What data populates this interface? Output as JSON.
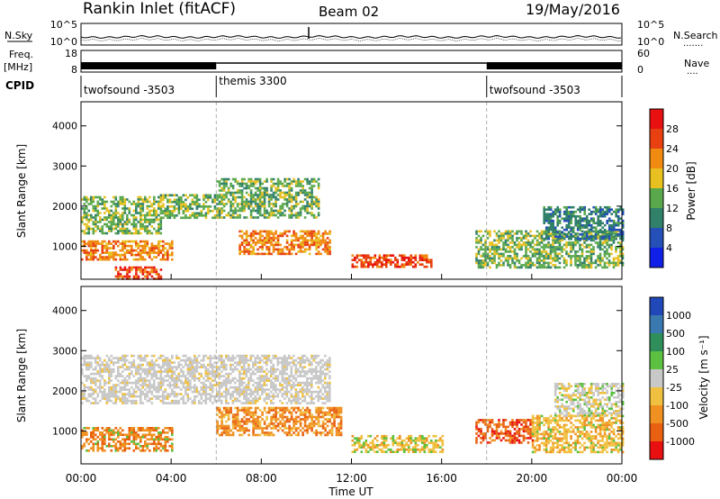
{
  "header": {
    "station": "Rankin Inlet (fitACF)",
    "beam": "Beam 02",
    "date": "19/May/2016"
  },
  "top_panels": {
    "noise": {
      "left_label": "N.Sky",
      "right_label": "N.Search",
      "left_ticks": [
        "10^5",
        "10^0"
      ],
      "right_ticks": [
        "10^5",
        "10^0"
      ],
      "right_legend": "......."
    },
    "freq": {
      "left_label_line1": "Freq.",
      "left_label_line2": "[MHz]",
      "right_label": "Nave",
      "left_ticks": [
        "18",
        "8"
      ],
      "right_ticks": [
        "60",
        "0"
      ],
      "right_legend": "...."
    },
    "cpid": {
      "label": "CPID",
      "segments": [
        {
          "name": "twofsound -3503",
          "start_h": 0,
          "end_h": 6
        },
        {
          "name": "themis 3300",
          "start_h": 6,
          "end_h": 18
        },
        {
          "name": "twofsound -3503",
          "start_h": 18,
          "end_h": 24
        }
      ]
    }
  },
  "power_colorbar": {
    "title": "Power [dB]",
    "ticks": [
      "4",
      "8",
      "12",
      "16",
      "20",
      "24",
      "28"
    ],
    "colors": [
      "#1020e6",
      "#2450b8",
      "#30806a",
      "#5aa84c",
      "#e8c020",
      "#f08a10",
      "#e84010",
      "#e81010"
    ]
  },
  "velocity_colorbar": {
    "title": "Velocity [m s⁻¹]",
    "ticks": [
      "1000",
      "500",
      "100",
      "25",
      "-25",
      "-100",
      "-500",
      "-1000"
    ],
    "colors": [
      "#2048b8",
      "#3a78b0",
      "#2f8f5a",
      "#5cc040",
      "#c8c8c8",
      "#f0c040",
      "#f09020",
      "#e86010",
      "#e81010"
    ]
  },
  "range_axis": {
    "label": "Slant Range [km]",
    "ticks": [
      "1000",
      "2000",
      "3000",
      "4000"
    ]
  },
  "time_axis": {
    "label": "Time UT",
    "ticks": [
      "00:00",
      "04:00",
      "08:00",
      "12:00",
      "16:00",
      "20:00",
      "00:00"
    ]
  },
  "chart_data": [
    {
      "type": "heatmap",
      "title": "Power [dB]",
      "xlabel": "Time UT",
      "ylabel": "Slant Range [km]",
      "xlim": [
        0,
        24
      ],
      "ylim": [
        180,
        4600
      ],
      "zlim": [
        0,
        30
      ],
      "mode_change_times": [
        6,
        18
      ],
      "echo_regions": [
        {
          "t0": 0.0,
          "t1": 3.5,
          "r0": 1350,
          "r1": 2250,
          "level": "12-16"
        },
        {
          "t0": 3.5,
          "t1": 6.0,
          "r0": 1700,
          "r1": 2300,
          "level": "12-16"
        },
        {
          "t0": 6.0,
          "t1": 10.5,
          "r0": 1700,
          "r1": 2700,
          "level": "12-16"
        },
        {
          "t0": 0.0,
          "t1": 4.0,
          "r0": 650,
          "r1": 1150,
          "level": "16-24"
        },
        {
          "t0": 1.5,
          "t1": 3.5,
          "r0": 200,
          "r1": 500,
          "level": "24-30"
        },
        {
          "t0": 7.0,
          "t1": 11.0,
          "r0": 800,
          "r1": 1400,
          "level": "16-24"
        },
        {
          "t0": 12.0,
          "t1": 15.5,
          "r0": 500,
          "r1": 800,
          "level": "20-28"
        },
        {
          "t0": 17.5,
          "t1": 24.0,
          "r0": 500,
          "r1": 1400,
          "level": "12-16"
        },
        {
          "t0": 20.5,
          "t1": 24.0,
          "r0": 1200,
          "r1": 2000,
          "level": "8-12"
        }
      ]
    },
    {
      "type": "heatmap",
      "title": "Velocity [m s⁻¹]",
      "xlabel": "Time UT",
      "ylabel": "Slant Range [km]",
      "xlim": [
        0,
        24
      ],
      "ylim": [
        180,
        4600
      ],
      "zlim": [
        -1000,
        1000
      ],
      "mode_change_times": [
        6,
        18
      ],
      "echo_regions": [
        {
          "t0": 0.0,
          "t1": 11.0,
          "r0": 1700,
          "r1": 2900,
          "level": "-25..25"
        },
        {
          "t0": 0.0,
          "t1": 4.0,
          "r0": 500,
          "r1": 1100,
          "level": "-100..-500"
        },
        {
          "t0": 6.0,
          "t1": 11.5,
          "r0": 900,
          "r1": 1600,
          "level": "-100..-500"
        },
        {
          "t0": 12.0,
          "t1": 16.0,
          "r0": 500,
          "r1": 900,
          "level": "-25..-100"
        },
        {
          "t0": 17.5,
          "t1": 20.0,
          "r0": 700,
          "r1": 1300,
          "level": "-500..-1000"
        },
        {
          "t0": 20.0,
          "t1": 24.0,
          "r0": 500,
          "r1": 1400,
          "level": "-25..-100"
        },
        {
          "t0": 21.0,
          "t1": 24.0,
          "r0": 1400,
          "r1": 2200,
          "level": "-25..25"
        }
      ]
    }
  ]
}
